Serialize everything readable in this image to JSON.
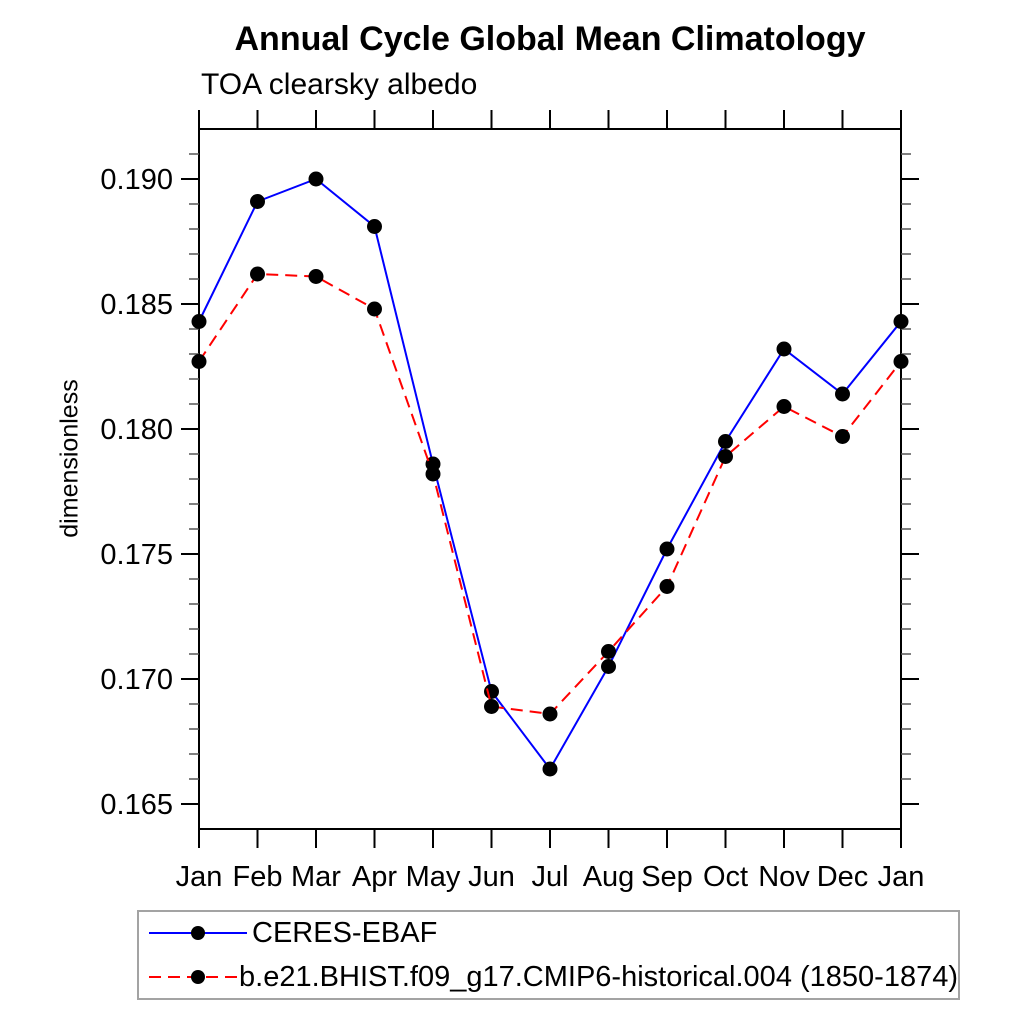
{
  "header": {
    "title": "Annual Cycle Global Mean Climatology",
    "subtitle": "TOA clearsky albedo"
  },
  "chart_data": {
    "type": "line",
    "categories": [
      "Jan",
      "Feb",
      "Mar",
      "Apr",
      "May",
      "Jun",
      "Jul",
      "Aug",
      "Sep",
      "Oct",
      "Nov",
      "Dec",
      "Jan"
    ],
    "xlabel": "",
    "ylabel": "dimensionless",
    "ylim": [
      0.164,
      0.192
    ],
    "yticks_major": [
      0.165,
      0.17,
      0.175,
      0.18,
      0.185,
      0.19
    ],
    "ytick_labels": [
      "0.165",
      "0.170",
      "0.175",
      "0.180",
      "0.185",
      "0.190"
    ],
    "minor_tick_step": 0.001,
    "grid": false,
    "legend_position": "bottom-left",
    "marker": "filled-circle",
    "marker_color": "#000000",
    "series": [
      {
        "name": "CERES-EBAF",
        "color": "#0000ff",
        "line_style": "solid",
        "values": [
          0.1843,
          0.1891,
          0.19,
          0.1881,
          0.1786,
          0.1695,
          0.1664,
          0.1705,
          0.1752,
          0.1795,
          0.1832,
          0.1814,
          0.1843
        ]
      },
      {
        "name": "b.e21.BHIST.f09_g17.CMIP6-historical.004 (1850-1874)",
        "color": "#ff0000",
        "line_style": "dashed",
        "values": [
          0.1827,
          0.1862,
          0.1861,
          0.1848,
          0.1782,
          0.1689,
          0.1686,
          0.1711,
          0.1737,
          0.1789,
          0.1809,
          0.1797,
          0.1827
        ]
      }
    ]
  }
}
